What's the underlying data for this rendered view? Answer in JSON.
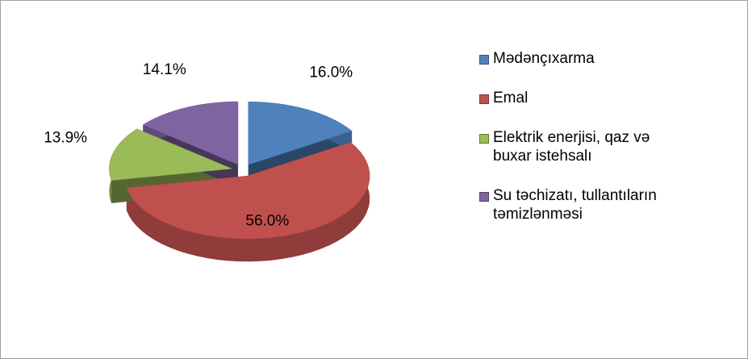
{
  "chart_data": {
    "type": "pie",
    "categories": [
      "Mədənçıxarma",
      "Emal",
      "Elektrik enerjisi, qaz və buxar istehsalı",
      "Su təchizatı, tullantıların təmizlənməsi"
    ],
    "values": [
      16.0,
      56.0,
      13.9,
      14.1
    ],
    "value_labels": [
      "16.0%",
      "56.0%",
      "13.9%",
      "14.1%"
    ],
    "colors": [
      "#4f81bd",
      "#c0504d",
      "#9bbb59",
      "#8064a2"
    ],
    "legend": "right"
  }
}
